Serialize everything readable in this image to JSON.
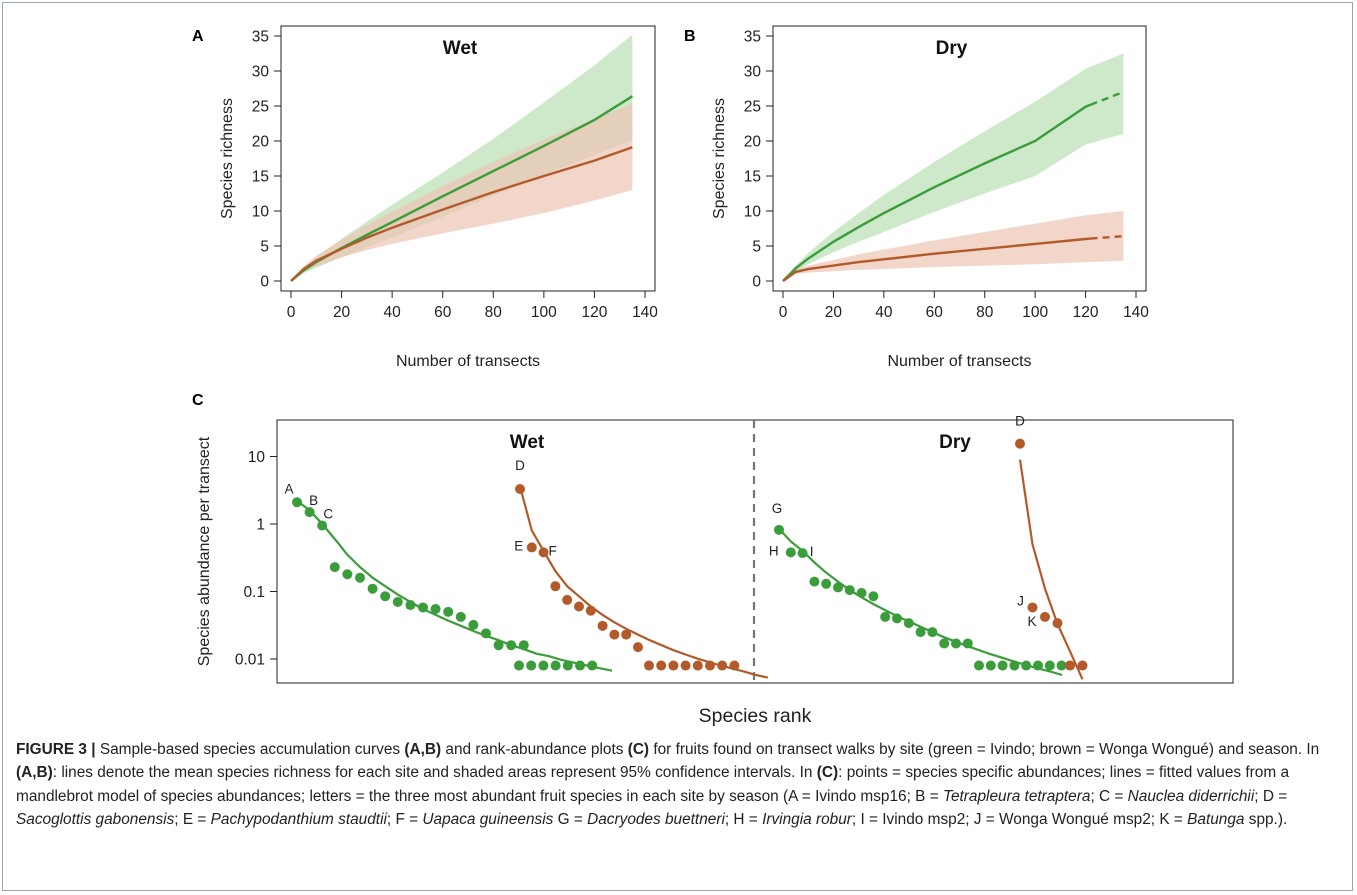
{
  "chart_data": [
    {
      "panel": "A",
      "type": "area",
      "title": "Wet",
      "xlabel": "Number of transects",
      "ylabel": "Species richness",
      "xlim": [
        0,
        140
      ],
      "ylim": [
        0,
        35
      ],
      "xticks": [
        0,
        20,
        40,
        60,
        80,
        100,
        120,
        140
      ],
      "yticks": [
        0,
        5,
        10,
        15,
        20,
        25,
        30,
        35
      ],
      "grid": false,
      "series": [
        {
          "site": "green",
          "color": "#3a9d3a",
          "band_color": "#b9deb4",
          "x": [
            0,
            5,
            10,
            20,
            30,
            40,
            60,
            80,
            100,
            120,
            135
          ],
          "mean": [
            0,
            1.5,
            2.7,
            4.7,
            6.6,
            8.4,
            12.1,
            15.7,
            19.3,
            23.0,
            26.4
          ],
          "lower": [
            0,
            1.1,
            1.9,
            3.4,
            4.8,
            6.2,
            9.2,
            12.2,
            15.2,
            18.0,
            20.1
          ],
          "upper": [
            0,
            1.9,
            3.4,
            6.0,
            8.5,
            10.9,
            15.5,
            20.3,
            25.5,
            30.8,
            35.2
          ],
          "dashed_from": null
        },
        {
          "site": "brown",
          "color": "#b35a2a",
          "band_color": "#ecc4b4",
          "x": [
            0,
            5,
            10,
            20,
            30,
            40,
            60,
            80,
            100,
            120,
            135
          ],
          "mean": [
            0,
            1.7,
            2.9,
            4.6,
            6.2,
            7.6,
            10.2,
            12.7,
            15.0,
            17.2,
            19.1
          ],
          "lower": [
            0,
            1.3,
            2.1,
            3.4,
            4.4,
            5.3,
            6.8,
            8.2,
            9.7,
            11.5,
            13.0
          ],
          "upper": [
            0,
            2.1,
            3.6,
            5.9,
            8.0,
            9.9,
            13.6,
            17.0,
            20.2,
            23.2,
            25.3
          ],
          "dashed_from": null
        }
      ]
    },
    {
      "panel": "B",
      "type": "area",
      "title": "Dry",
      "xlabel": "Number of transects",
      "ylabel": "Species richness",
      "xlim": [
        0,
        140
      ],
      "ylim": [
        0,
        35
      ],
      "xticks": [
        0,
        20,
        40,
        60,
        80,
        100,
        120,
        140
      ],
      "yticks": [
        0,
        5,
        10,
        15,
        20,
        25,
        30,
        35
      ],
      "grid": false,
      "series": [
        {
          "site": "green",
          "color": "#3a9d3a",
          "band_color": "#b9deb4",
          "x": [
            0,
            5,
            10,
            20,
            30,
            40,
            60,
            80,
            100,
            120,
            135
          ],
          "mean": [
            0,
            1.8,
            3.2,
            5.6,
            7.7,
            9.7,
            13.4,
            16.8,
            20.0,
            24.9,
            27.0
          ],
          "lower": [
            0,
            1.3,
            2.4,
            4.1,
            5.6,
            7.0,
            9.9,
            12.5,
            15.0,
            19.5,
            21.0
          ],
          "upper": [
            0,
            2.2,
            4.0,
            7.0,
            9.7,
            12.3,
            17.0,
            21.4,
            25.6,
            30.3,
            32.5
          ],
          "dashed_from": 122
        },
        {
          "site": "brown",
          "color": "#b35a2a",
          "band_color": "#ecc4b4",
          "x": [
            0,
            5,
            10,
            20,
            30,
            40,
            60,
            80,
            100,
            120,
            135
          ],
          "mean": [
            0,
            1.3,
            1.7,
            2.2,
            2.7,
            3.1,
            3.9,
            4.6,
            5.3,
            6.0,
            6.4
          ],
          "lower": [
            0,
            1.0,
            1.2,
            1.4,
            1.6,
            1.7,
            2.0,
            2.2,
            2.4,
            2.7,
            2.9
          ],
          "upper": [
            0,
            1.6,
            2.2,
            3.0,
            3.8,
            4.5,
            5.8,
            7.0,
            8.2,
            9.4,
            10.0
          ],
          "dashed_from": 122
        }
      ]
    },
    {
      "panel": "C",
      "type": "scatter",
      "xlabel": "Species rank",
      "ylabel": "Species abundance per transect",
      "yscale": "log",
      "yticks": [
        0.01,
        0.1,
        1,
        10
      ],
      "ytick_labels": [
        "0.01",
        "0.1",
        "1",
        "10"
      ],
      "grid": false,
      "facets": [
        {
          "title": "Wet",
          "groups": [
            {
              "site": "green",
              "color": "#3a9d3a",
              "values": [
                2.1,
                1.5,
                0.95,
                0.23,
                0.18,
                0.16,
                0.11,
                0.085,
                0.07,
                0.063,
                0.058,
                0.055,
                0.05,
                0.042,
                0.032,
                0.024,
                0.016,
                0.016,
                0.016
              ],
              "tail": [
                0.008,
                0.008,
                0.008,
                0.008,
                0.008,
                0.008,
                0.008
              ],
              "labels": [
                "A",
                "B",
                "C"
              ],
              "fit": [
                2.2,
                1.6,
                1.0,
                0.6,
                0.35,
                0.23,
                0.16,
                0.12,
                0.09,
                0.07,
                0.055,
                0.045,
                0.037,
                0.031,
                0.026,
                0.022,
                0.019,
                0.016,
                0.014,
                0.012,
                0.011,
                0.0097,
                0.0088,
                0.008,
                0.0073,
                0.0067
              ]
            },
            {
              "site": "brown",
              "color": "#b35a2a",
              "values": [
                3.3,
                0.45,
                0.38,
                0.12,
                0.075,
                0.06,
                0.052,
                0.031,
                0.023,
                0.023,
                0.015
              ],
              "tail": [
                0.008,
                0.008,
                0.008,
                0.008,
                0.008,
                0.008,
                0.008,
                0.008
              ],
              "labels": [
                "D",
                "E",
                "F"
              ],
              "fit": [
                3.6,
                0.8,
                0.4,
                0.2,
                0.12,
                0.085,
                0.06,
                0.045,
                0.035,
                0.028,
                0.023,
                0.019,
                0.016,
                0.0135,
                0.0117,
                0.0102,
                0.009,
                0.008,
                0.0072,
                0.0065,
                0.0058,
                0.0053
              ]
            }
          ]
        },
        {
          "title": "Dry",
          "groups": [
            {
              "site": "green",
              "color": "#3a9d3a",
              "values": [
                0.82,
                0.38,
                0.37,
                0.14,
                0.13,
                0.115,
                0.105,
                0.095,
                0.085,
                0.042,
                0.04,
                0.034,
                0.025,
                0.025,
                0.017,
                0.017,
                0.017
              ],
              "tail": [
                0.008,
                0.008,
                0.008,
                0.008,
                0.008,
                0.008,
                0.008,
                0.008
              ],
              "labels": [
                "G",
                "H",
                "I"
              ],
              "fit": [
                0.85,
                0.55,
                0.4,
                0.27,
                0.19,
                0.14,
                0.105,
                0.082,
                0.065,
                0.053,
                0.043,
                0.036,
                0.03,
                0.025,
                0.021,
                0.018,
                0.0155,
                0.0134,
                0.0117,
                0.0103,
                0.0091,
                0.0081,
                0.0072,
                0.0065,
                0.0058
              ]
            },
            {
              "site": "brown",
              "color": "#b35a2a",
              "values": [
                15.5,
                0.058,
                0.042,
                0.034,
                0.008,
                0.008
              ],
              "tail": [],
              "labels": [
                "D",
                "J",
                "K"
              ],
              "fit": [
                9.0,
                0.5,
                0.11,
                0.033,
                0.013,
                0.005
              ]
            }
          ]
        }
      ]
    }
  ],
  "caption": {
    "head": "FIGURE 3 |",
    "segments": [
      {
        "t": " Sample-based species accumulation curves ",
        "s": ""
      },
      {
        "t": "(A,B)",
        "s": "b"
      },
      {
        "t": " and rank-abundance plots ",
        "s": ""
      },
      {
        "t": "(C)",
        "s": "b"
      },
      {
        "t": " for fruits found on transect walks by site (green = Ivindo; brown = Wonga Wongué) and season. In ",
        "s": ""
      },
      {
        "t": "(A,B)",
        "s": "b"
      },
      {
        "t": ": lines denote the mean species richness for each site and shaded areas represent 95% confidence intervals. In ",
        "s": ""
      },
      {
        "t": "(C)",
        "s": "b"
      },
      {
        "t": ": points = species specific abundances; lines = fitted values from a mandlebrot model of species abundances; letters = the three most abundant fruit species in each site by season (A = Ivindo msp16; B = ",
        "s": ""
      },
      {
        "t": "Tetrapleura tetraptera",
        "s": "i"
      },
      {
        "t": "; C = ",
        "s": ""
      },
      {
        "t": "Nauclea diderrichii",
        "s": "i"
      },
      {
        "t": "; D = ",
        "s": ""
      },
      {
        "t": "Sacoglottis gabonensis",
        "s": "i"
      },
      {
        "t": "; E = ",
        "s": ""
      },
      {
        "t": "Pachypodanthium staudtii",
        "s": "i"
      },
      {
        "t": "; F = ",
        "s": ""
      },
      {
        "t": "Uapaca guineensis",
        "s": "i"
      },
      {
        "t": " G = ",
        "s": ""
      },
      {
        "t": "Dacryodes buettneri",
        "s": "i"
      },
      {
        "t": "; H = ",
        "s": ""
      },
      {
        "t": "Irvingia robur",
        "s": "i"
      },
      {
        "t": "; I = Ivindo msp2; J = Wonga Wongué msp2; K = ",
        "s": ""
      },
      {
        "t": "Batunga",
        "s": "i"
      },
      {
        "t": " spp.).",
        "s": ""
      }
    ]
  }
}
